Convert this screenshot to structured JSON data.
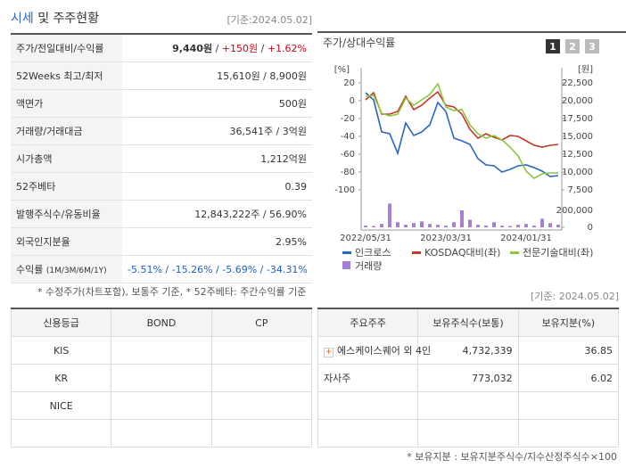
{
  "header": {
    "title_main": "시세",
    "title_rest": "및 주주현황",
    "date": "[기준:2024.05.02]"
  },
  "summary": {
    "rows": [
      {
        "label": "주가/전일대비/수익률",
        "value": [
          "9,440원",
          " / ",
          "+150원",
          " / ",
          "+1.62%"
        ]
      },
      {
        "label": "52Weeks 최고/최저",
        "value": "15,610원 / 8,900원"
      },
      {
        "label": "액면가",
        "value": "500원"
      },
      {
        "label": "거래량/거래대금",
        "value": "36,541주 / 3억원"
      },
      {
        "label": "시가총액",
        "value": "1,212억원"
      },
      {
        "label": "52주베타",
        "value": "0.39"
      },
      {
        "label": "발행주식수/유동비율",
        "value": "12,843,222주 / 56.90%"
      },
      {
        "label": "외국인지분율",
        "value": "2.95%"
      },
      {
        "label": "수익률",
        "sublabel": "(1M/3M/6M/1Y)",
        "value": [
          "-5.51%",
          " / ",
          "-15.26%",
          " / ",
          "-5.69%",
          " / ",
          "-34.31%"
        ]
      }
    ],
    "note": "* 수정주가(차트포함), 보통주 기준, * 52주베타: 주간수익률 기준"
  },
  "chart": {
    "type": "line",
    "title": "주가/상대수익률",
    "buttons": [
      "1",
      "2",
      "3"
    ],
    "y_unit": "[%]",
    "y2_unit": "[원]",
    "categories": [
      "2022/05/31",
      null,
      null,
      null,
      null,
      null,
      null,
      null,
      null,
      null,
      "2023/03/31",
      null,
      null,
      null,
      null,
      null,
      null,
      null,
      null,
      null,
      "2024/01/31",
      null,
      null,
      null,
      null
    ],
    "ylim": [
      -100,
      20
    ],
    "yticks": [
      20,
      0,
      -20,
      -40,
      -60,
      -80,
      -100
    ],
    "y2lim": [
      7500,
      22500
    ],
    "y2ticks": [
      {
        "value": 22500,
        "label": "22,500"
      },
      {
        "value": 20000,
        "label": "20,000"
      },
      {
        "value": 17500,
        "label": "17,500"
      },
      {
        "value": 15000,
        "label": "15,000"
      },
      {
        "value": 12500,
        "label": "12,500"
      },
      {
        "value": 10000,
        "label": "10,000"
      },
      {
        "value": 7500,
        "label": "7,500"
      }
    ],
    "volume_lim": [
      0,
      300000
    ],
    "volume_ticks": [
      {
        "value": 200000,
        "label": "200,000"
      },
      0
    ],
    "series": [
      {
        "name": "인크로스",
        "color": "#2a64c4",
        "axis": "y2",
        "values": [
          21125,
          20125,
          15625,
          15375,
          12625,
          16875,
          15125,
          15625,
          16625,
          19750,
          18500,
          14750,
          14375,
          13875,
          11875,
          11000,
          10875,
          10000,
          10375,
          10875,
          11000,
          10625,
          10125,
          9375,
          9500
        ]
      },
      {
        "name": "KOSDAQ대비(좌)",
        "color": "#c0392b",
        "axis": "y",
        "values": [
          1,
          9,
          -15,
          -15,
          -12,
          5,
          -10,
          -5,
          3,
          10,
          -5,
          -7,
          -15,
          -32,
          -42,
          -37,
          -41,
          -44,
          -39,
          -40,
          -45,
          -50,
          -52,
          -50,
          -49
        ]
      },
      {
        "name": "전문기술대비(좌)",
        "color": "#8dc63f",
        "axis": "y",
        "values": [
          5,
          6,
          -14,
          -17,
          -15,
          3,
          -5,
          1,
          7,
          19,
          -7,
          -11,
          -10,
          -27,
          -37,
          -42,
          -39,
          -44,
          -52,
          -62,
          -79,
          -87,
          -82,
          -81,
          -81
        ]
      },
      {
        "name": "거래량",
        "color": "#a47fd6",
        "type": "bar",
        "axis": "volume",
        "values": [
          20000,
          15000,
          40000,
          280000,
          60000,
          30000,
          50000,
          70000,
          40000,
          30000,
          20000,
          60000,
          200000,
          90000,
          30000,
          20000,
          60000,
          20000,
          15000,
          30000,
          40000,
          20000,
          100000,
          50000,
          30000
        ]
      }
    ]
  },
  "date2": "[기준: 2024.05.02]",
  "credit": {
    "headers": [
      "신용등급",
      "BOND",
      "CP"
    ],
    "rows": [
      [
        "KIS"
      ],
      [
        "KR"
      ],
      [
        "NICE"
      ]
    ]
  },
  "holders": {
    "headers": [
      "주요주주",
      "보유주식수(보통)",
      "보유지분(%)"
    ],
    "rows": [
      [
        "에스케이스퀘어 외 4인",
        "4,732,339",
        "36.85"
      ],
      [
        "자사주",
        "773,032",
        "6.02"
      ]
    ]
  },
  "footnote": "* 보유지분 : 보유지분주식수/지수산정주식수×100"
}
